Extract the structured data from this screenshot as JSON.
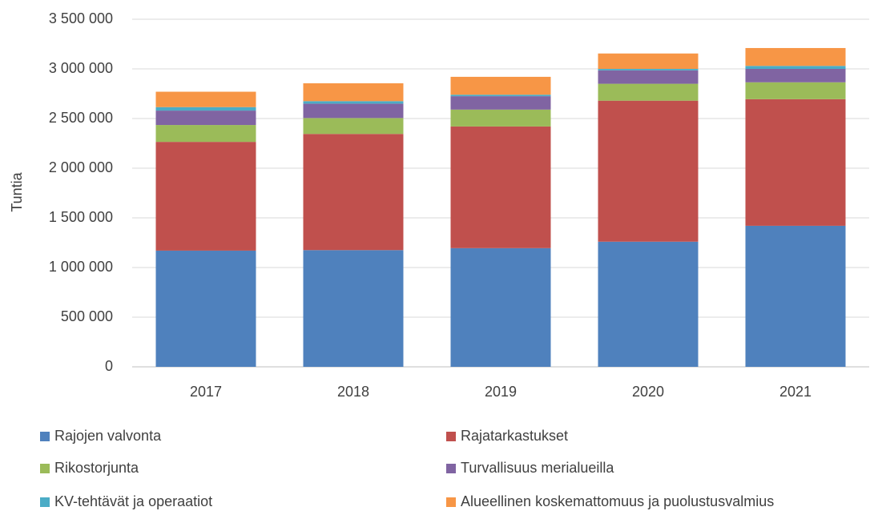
{
  "chart_data": {
    "type": "stacked_bar",
    "ylabel": "Tuntia",
    "categories": [
      "2017",
      "2018",
      "2019",
      "2020",
      "2021"
    ],
    "series": [
      {
        "name": "Rajojen valvonta",
        "color": "#4f81bd",
        "values": [
          1170000,
          1175000,
          1195000,
          1260000,
          1420000
        ]
      },
      {
        "name": "Rajatarkastukset",
        "color": "#c0504d",
        "values": [
          1095000,
          1170000,
          1225000,
          1420000,
          1275000
        ]
      },
      {
        "name": "Rikostorjunta",
        "color": "#9bbb59",
        "values": [
          170000,
          160000,
          170000,
          170000,
          170000
        ]
      },
      {
        "name": "Turvallisuus merialueilla",
        "color": "#8064a2",
        "values": [
          145000,
          145000,
          135000,
          135000,
          135000
        ]
      },
      {
        "name": "KV-tehtävät ja operaatiot",
        "color": "#4bacc6",
        "values": [
          35000,
          25000,
          15000,
          15000,
          30000
        ]
      },
      {
        "name": "Alueellinen koskemattomuus ja puolustusvalmius",
        "color": "#f79646",
        "values": [
          155000,
          180000,
          180000,
          155000,
          180000
        ]
      }
    ],
    "ylim": [
      0,
      3500000
    ],
    "yticks": [
      0,
      {
        "value": 500000,
        "label": "500 000"
      },
      {
        "value": 1000000,
        "label": "1 000 000"
      },
      {
        "value": 1500000,
        "label": "1 500 000"
      },
      {
        "value": 2000000,
        "label": "2 000 000"
      },
      {
        "value": 2500000,
        "label": "2 500 000"
      },
      {
        "value": 3000000,
        "label": "3 000 000"
      },
      {
        "value": 3500000,
        "label": "3 500 000"
      }
    ],
    "grid": true
  }
}
